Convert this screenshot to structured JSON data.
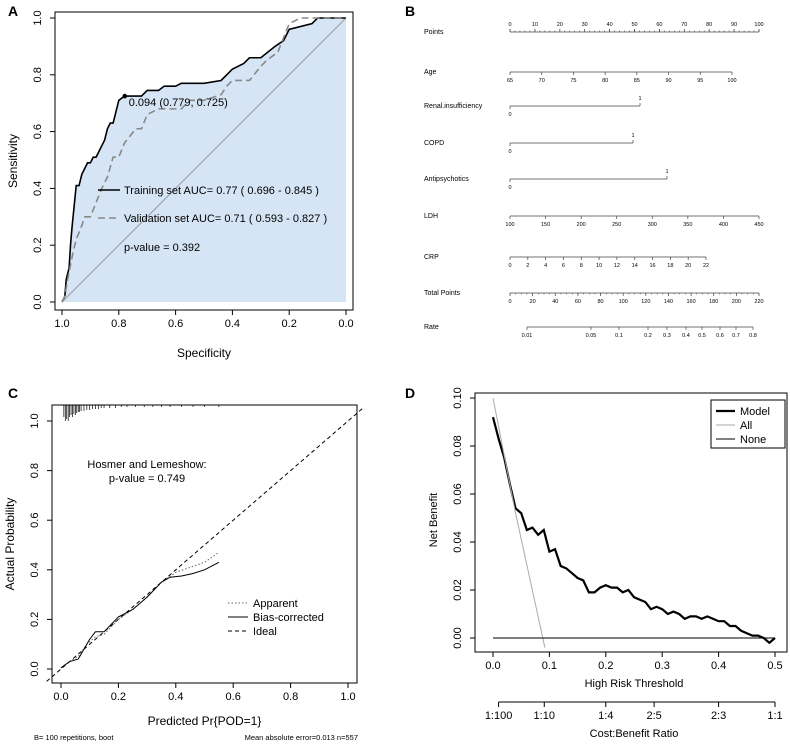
{
  "chart_data": [
    {
      "panel": "A",
      "type": "line",
      "title": "",
      "xlabel": "Specificity",
      "ylabel": "Sensitivity",
      "xlim": [
        1.0,
        0.0
      ],
      "ylim": [
        0.0,
        1.0
      ],
      "xticks": [
        "1.0",
        "0.8",
        "0.6",
        "0.4",
        "0.2",
        "0.0"
      ],
      "yticks": [
        "0.0",
        "0.2",
        "0.4",
        "0.6",
        "0.8",
        "1.0"
      ],
      "threshold_label": "0.094 (0.779, 0.725)",
      "threshold_point": [
        0.779,
        0.725
      ],
      "legend": [
        {
          "name": "Training set AUC= 0.77 ( 0.696 - 0.845 )",
          "style": "solid"
        },
        {
          "name": "Validation set AUC= 0.71 ( 0.593 - 0.827 )",
          "style": "dashed"
        }
      ],
      "annotation": "p-value = 0.392",
      "series": [
        {
          "name": "Training set",
          "specificity": [
            1.0,
            0.99,
            0.985,
            0.975,
            0.97,
            0.965,
            0.96,
            0.955,
            0.95,
            0.94,
            0.93,
            0.92,
            0.91,
            0.9,
            0.89,
            0.88,
            0.87,
            0.86,
            0.85,
            0.84,
            0.83,
            0.82,
            0.81,
            0.8,
            0.78,
            0.75,
            0.72,
            0.7,
            0.66,
            0.64,
            0.6,
            0.58,
            0.5,
            0.44,
            0.42,
            0.4,
            0.36,
            0.34,
            0.3,
            0.25,
            0.22,
            0.2,
            0.12,
            0.1,
            0.0
          ],
          "sensitivity": [
            0.0,
            0.02,
            0.08,
            0.12,
            0.2,
            0.26,
            0.31,
            0.36,
            0.41,
            0.41,
            0.45,
            0.47,
            0.49,
            0.49,
            0.51,
            0.51,
            0.53,
            0.55,
            0.57,
            0.61,
            0.63,
            0.63,
            0.67,
            0.71,
            0.725,
            0.725,
            0.725,
            0.745,
            0.745,
            0.76,
            0.76,
            0.77,
            0.77,
            0.78,
            0.8,
            0.82,
            0.84,
            0.86,
            0.86,
            0.9,
            0.92,
            0.96,
            0.98,
            1.0,
            1.0
          ]
        },
        {
          "name": "Validation set",
          "specificity": [
            1.0,
            0.99,
            0.98,
            0.97,
            0.96,
            0.95,
            0.93,
            0.92,
            0.9,
            0.88,
            0.86,
            0.84,
            0.82,
            0.8,
            0.78,
            0.74,
            0.72,
            0.7,
            0.66,
            0.62,
            0.58,
            0.55,
            0.5,
            0.44,
            0.42,
            0.4,
            0.34,
            0.3,
            0.28,
            0.24,
            0.22,
            0.2,
            0.16,
            0.0
          ],
          "sensitivity": [
            0.0,
            0.02,
            0.08,
            0.13,
            0.18,
            0.22,
            0.27,
            0.3,
            0.3,
            0.35,
            0.4,
            0.44,
            0.51,
            0.51,
            0.56,
            0.61,
            0.61,
            0.66,
            0.68,
            0.68,
            0.68,
            0.71,
            0.71,
            0.73,
            0.76,
            0.78,
            0.78,
            0.83,
            0.85,
            0.88,
            0.93,
            0.98,
            1.0,
            1.0
          ]
        }
      ]
    },
    {
      "panel": "B",
      "type": "nomogram",
      "scales": [
        {
          "label": "Points",
          "min": 0,
          "max": 100,
          "ticks": [
            "0",
            "10",
            "20",
            "30",
            "40",
            "50",
            "60",
            "70",
            "80",
            "90",
            "100"
          ],
          "labels_above": true
        },
        {
          "label": "Age",
          "min": 65,
          "max": 100,
          "ticks": [
            "65",
            "70",
            "75",
            "80",
            "85",
            "90",
            "95",
            "100"
          ]
        },
        {
          "label": "Renal.insufficiency",
          "ticks": [
            "0",
            "1"
          ]
        },
        {
          "label": "COPD",
          "ticks": [
            "0",
            "1"
          ]
        },
        {
          "label": "Antipsychotics",
          "ticks": [
            "0",
            "1"
          ]
        },
        {
          "label": "LDH",
          "min": 100,
          "max": 450,
          "ticks": [
            "100",
            "150",
            "200",
            "250",
            "300",
            "350",
            "400",
            "450"
          ]
        },
        {
          "label": "CRP",
          "min": 0,
          "max": 22,
          "ticks": [
            "0",
            "2",
            "4",
            "6",
            "8",
            "10",
            "12",
            "14",
            "16",
            "18",
            "20",
            "22"
          ]
        },
        {
          "label": "Total Points",
          "min": 0,
          "max": 220,
          "ticks": [
            "0",
            "20",
            "40",
            "60",
            "80",
            "100",
            "120",
            "140",
            "160",
            "180",
            "200",
            "220"
          ]
        },
        {
          "label": "Rate",
          "ticks": [
            "0.01",
            "0.05",
            "0.1",
            "0.2",
            "0.3",
            "0.4",
            "0.5",
            "0.6",
            "0.7",
            "0.8"
          ]
        }
      ]
    },
    {
      "panel": "C",
      "type": "line",
      "xlabel": "Predicted Pr{POD=1}",
      "ylabel": "Actual Probability",
      "xlim": [
        0.0,
        1.0
      ],
      "ylim": [
        0.0,
        1.0
      ],
      "xticks": [
        "0.0",
        "0.2",
        "0.4",
        "0.6",
        "0.8",
        "1.0"
      ],
      "yticks": [
        "0.0",
        "0.2",
        "0.4",
        "0.6",
        "0.8",
        "1.0"
      ],
      "annotation_title": "Hosmer and Lemeshow:",
      "annotation_value": "p-value = 0.749",
      "legend": [
        {
          "name": "Apparent",
          "style": "dotted"
        },
        {
          "name": "Bias-corrected",
          "style": "solid"
        },
        {
          "name": "Ideal",
          "style": "dashed"
        }
      ],
      "footer_left": "B= 100 repetitions, boot",
      "footer_right": "Mean absolute error=0.013 n=557",
      "series": [
        {
          "name": "Apparent",
          "x": [
            0.0,
            0.03,
            0.06,
            0.09,
            0.12,
            0.15,
            0.2,
            0.25,
            0.3,
            0.35,
            0.4,
            0.45,
            0.5,
            0.55
          ],
          "y": [
            0.005,
            0.03,
            0.05,
            0.1,
            0.13,
            0.14,
            0.2,
            0.24,
            0.29,
            0.35,
            0.39,
            0.41,
            0.43,
            0.47
          ]
        },
        {
          "name": "Bias-corrected",
          "x": [
            0.0,
            0.03,
            0.06,
            0.08,
            0.1,
            0.12,
            0.15,
            0.2,
            0.25,
            0.3,
            0.35,
            0.38,
            0.42,
            0.46,
            0.5,
            0.55
          ],
          "y": [
            0.005,
            0.03,
            0.04,
            0.08,
            0.12,
            0.15,
            0.15,
            0.21,
            0.24,
            0.29,
            0.35,
            0.37,
            0.375,
            0.385,
            0.4,
            0.43
          ]
        },
        {
          "name": "Ideal",
          "x": [
            -0.05,
            1.05
          ],
          "y": [
            -0.05,
            1.05
          ]
        }
      ],
      "rug_x": [
        0.01,
        0.015,
        0.02,
        0.025,
        0.03,
        0.035,
        0.04,
        0.045,
        0.05,
        0.055,
        0.06,
        0.065,
        0.07,
        0.08,
        0.09,
        0.1,
        0.11,
        0.12,
        0.13,
        0.14,
        0.15,
        0.17,
        0.19,
        0.21,
        0.23,
        0.26,
        0.29,
        0.32,
        0.35,
        0.38,
        0.42,
        0.46,
        0.5,
        0.55
      ],
      "rug_len": [
        12,
        16,
        14,
        16,
        12,
        10,
        12,
        9,
        10,
        8,
        7,
        7,
        6,
        6,
        5,
        5,
        4,
        4,
        4,
        3,
        3,
        3,
        3,
        2,
        2,
        2,
        2,
        2,
        2,
        2,
        2,
        2,
        2,
        2
      ]
    },
    {
      "panel": "D",
      "type": "line",
      "xlabel": "High Risk Threshold",
      "ylabel": "Net Benefit",
      "xlim": [
        0.0,
        0.5
      ],
      "ylim": [
        0.0,
        0.1
      ],
      "xticks": [
        "0.0",
        "0.1",
        "0.2",
        "0.3",
        "0.4",
        "0.5"
      ],
      "yticks": [
        "0.00",
        "0.02",
        "0.04",
        "0.06",
        "0.08",
        "0.10"
      ],
      "secondary_xlabel": "Cost:Benefit Ratio",
      "secondary_xticks": [
        {
          "label": "1:100",
          "at": 0.0099
        },
        {
          "label": "1:10",
          "at": 0.0909
        },
        {
          "label": "1:4",
          "at": 0.2
        },
        {
          "label": "2:5",
          "at": 0.2857
        },
        {
          "label": "2:3",
          "at": 0.4
        },
        {
          "label": "1:1",
          "at": 0.5
        }
      ],
      "legend": [
        {
          "name": "Model",
          "color": "#000000"
        },
        {
          "name": "All",
          "color": "#aaaaaa"
        },
        {
          "name": "None",
          "color": "#000000"
        }
      ],
      "series": [
        {
          "name": "Model",
          "x": [
            0.0,
            0.01,
            0.02,
            0.03,
            0.04,
            0.05,
            0.06,
            0.07,
            0.08,
            0.09,
            0.1,
            0.11,
            0.12,
            0.13,
            0.14,
            0.15,
            0.16,
            0.17,
            0.18,
            0.19,
            0.2,
            0.21,
            0.22,
            0.23,
            0.24,
            0.25,
            0.26,
            0.27,
            0.28,
            0.29,
            0.3,
            0.31,
            0.32,
            0.33,
            0.34,
            0.35,
            0.36,
            0.37,
            0.38,
            0.39,
            0.4,
            0.41,
            0.42,
            0.43,
            0.44,
            0.45,
            0.46,
            0.47,
            0.48,
            0.49,
            0.5
          ],
          "y": [
            0.092,
            0.083,
            0.075,
            0.064,
            0.054,
            0.052,
            0.045,
            0.046,
            0.043,
            0.045,
            0.036,
            0.037,
            0.03,
            0.029,
            0.027,
            0.025,
            0.024,
            0.019,
            0.019,
            0.021,
            0.022,
            0.021,
            0.021,
            0.019,
            0.02,
            0.017,
            0.016,
            0.015,
            0.012,
            0.013,
            0.012,
            0.01,
            0.011,
            0.01,
            0.008,
            0.009,
            0.009,
            0.008,
            0.009,
            0.008,
            0.007,
            0.007,
            0.005,
            0.005,
            0.003,
            0.002,
            0.001,
            0.001,
            0.0,
            -0.002,
            0.0
          ]
        },
        {
          "name": "All",
          "x": [
            0.0,
            0.04,
            0.092
          ],
          "y": [
            0.1,
            0.052,
            -0.004
          ]
        },
        {
          "name": "None",
          "x": [
            0.0,
            0.5
          ],
          "y": [
            0.0,
            0.0
          ]
        }
      ]
    }
  ],
  "panels": {
    "a": "A",
    "b": "B",
    "c": "C",
    "d": "D"
  }
}
